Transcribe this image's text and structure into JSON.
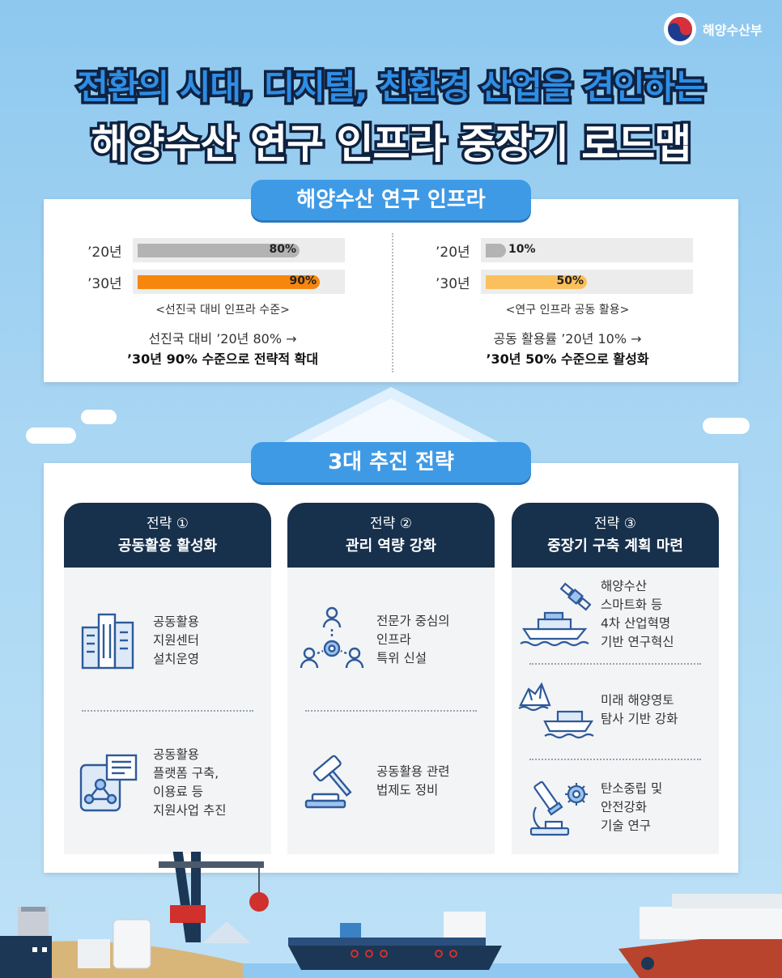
{
  "brand": {
    "name": "해양수산부"
  },
  "title": {
    "line1": "전환의 시대, 디지털, 친환경 산업을 견인하는",
    "line2": "해양수산 연구 인프라 중장기 로드맵"
  },
  "infra": {
    "label": "해양수산 연구 인프라",
    "left": {
      "bars": [
        {
          "year": "’20년",
          "value_label": "80%",
          "value": 80,
          "color": "#b3b3b3"
        },
        {
          "year": "’30년",
          "value_label": "90%",
          "value": 90,
          "color": "#f7860e"
        }
      ],
      "caption": "<선진국 대비 인프라 수준>",
      "desc_line1": "선진국 대비 ’20년 80% →",
      "desc_line2": "’30년 90% 수준으로 전략적 확대"
    },
    "right": {
      "bars": [
        {
          "year": "’20년",
          "value_label": "10%",
          "value": 10,
          "color": "#b3b3b3"
        },
        {
          "year": "’30년",
          "value_label": "50%",
          "value": 50,
          "color": "#fbc05c"
        }
      ],
      "caption": "<연구 인프라 공동 활용>",
      "desc_line1": "공동 활용률 ’20년 10% →",
      "desc_line2": "’30년 50% 수준으로 활성화"
    }
  },
  "strategies": {
    "label": "3대 추진 전략",
    "cols": [
      {
        "tag": "전략 ①",
        "title": "공동활용 활성화",
        "items": [
          {
            "icon": "buildings-icon",
            "lines": [
              "공동활용",
              "지원센터",
              "설치운영"
            ]
          },
          {
            "icon": "platform-network-icon",
            "lines": [
              "공동활용",
              "플랫폼 구축,",
              "이용료 등",
              "지원사업 추진"
            ]
          }
        ]
      },
      {
        "tag": "전략 ②",
        "title": "관리 역량 강화",
        "items": [
          {
            "icon": "experts-gear-icon",
            "lines": [
              "전문가 중심의",
              "인프라",
              "특위 신설"
            ]
          },
          {
            "icon": "gavel-icon",
            "lines": [
              "공동활용 관련",
              "법제도 정비"
            ]
          }
        ]
      },
      {
        "tag": "전략 ③",
        "title": "중장기 구축 계획 마련",
        "items": [
          {
            "icon": "ship-satellite-icon",
            "lines": [
              "해양수산",
              "스마트화 등",
              "4차 산업혁명",
              "기반 연구혁신"
            ]
          },
          {
            "icon": "iceberg-ship-icon",
            "lines": [
              "미래 해양영토",
              "탐사 기반 강화"
            ]
          },
          {
            "icon": "microscope-gear-icon",
            "lines": [
              "탄소중립 및",
              "안전강화",
              "기술 연구"
            ]
          }
        ]
      }
    ]
  },
  "colors": {
    "navy": "#17304c",
    "accent": "#3f9ae6",
    "orange": "#f7860e",
    "yellow": "#fbc05c"
  }
}
